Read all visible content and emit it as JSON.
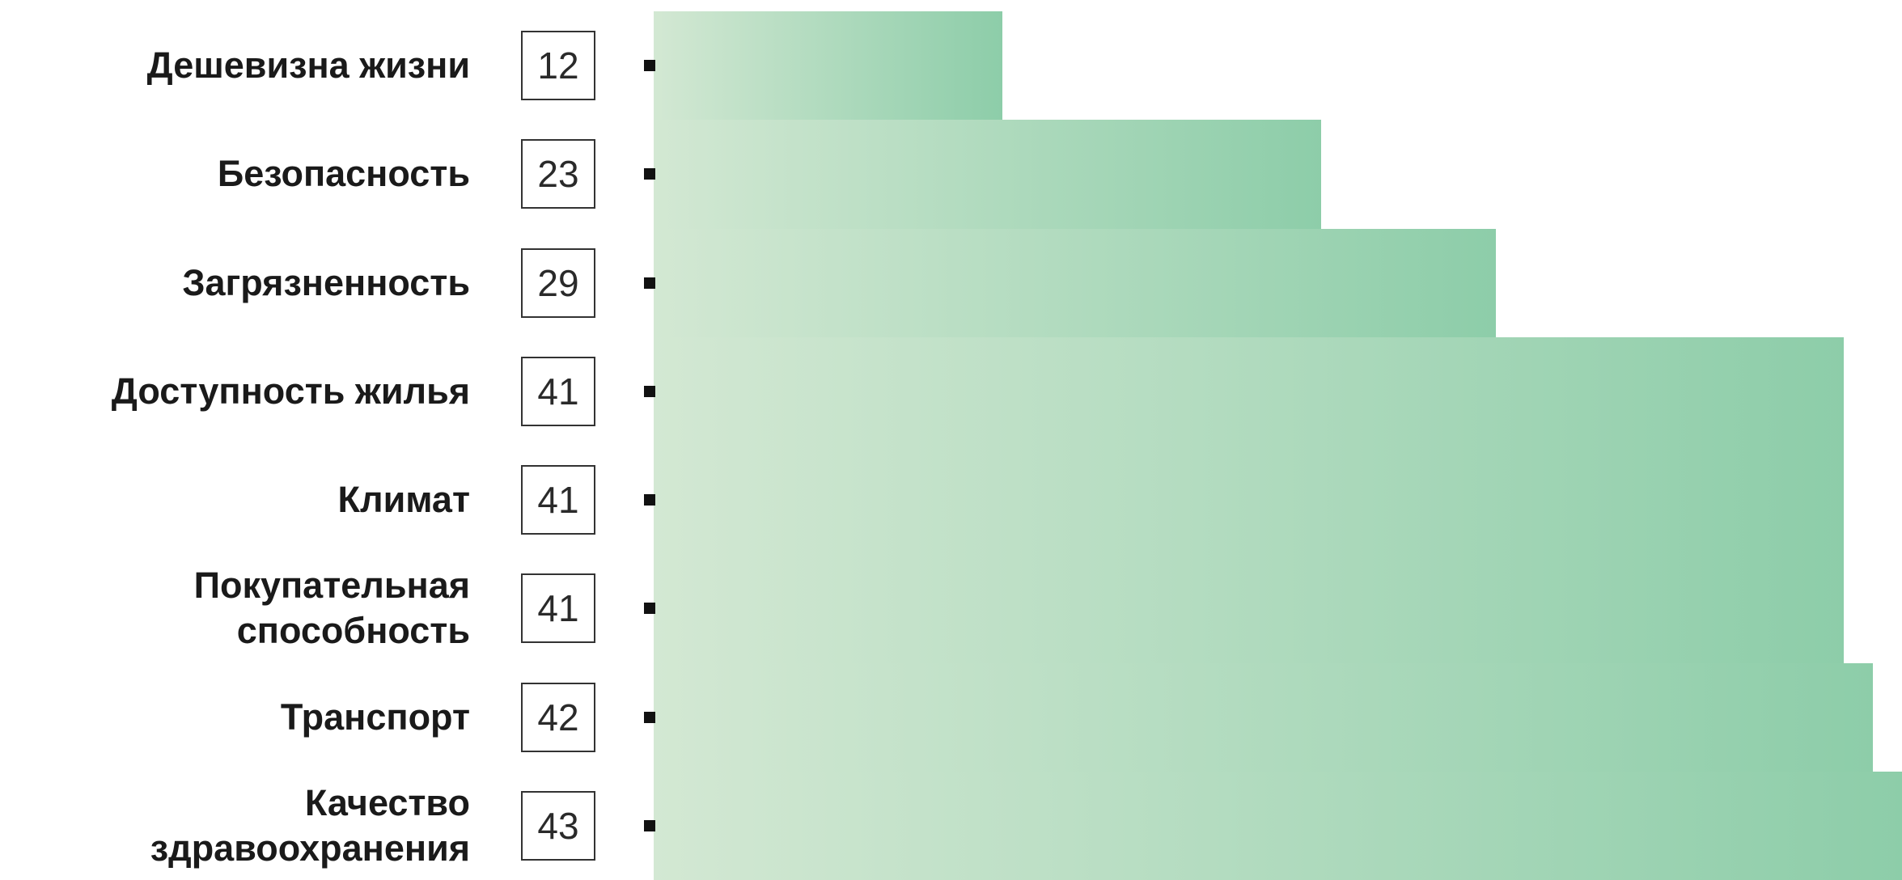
{
  "chart_data": {
    "type": "bar",
    "orientation": "horizontal",
    "categories": [
      "Дешевизна жизни",
      "Безопасность",
      "Загрязненность",
      "Доступность жилья",
      "Климат",
      "Покупательная способность",
      "Транспорт",
      "Качество здравоохранения"
    ],
    "values": [
      12,
      23,
      29,
      41,
      41,
      41,
      42,
      43
    ],
    "title": "",
    "xlabel": "",
    "ylabel": "",
    "data_labels": true,
    "bar_gradient": [
      "#d3e8d3",
      "#8dcda9"
    ],
    "label_color": "#1a1a1a",
    "grid": false
  }
}
